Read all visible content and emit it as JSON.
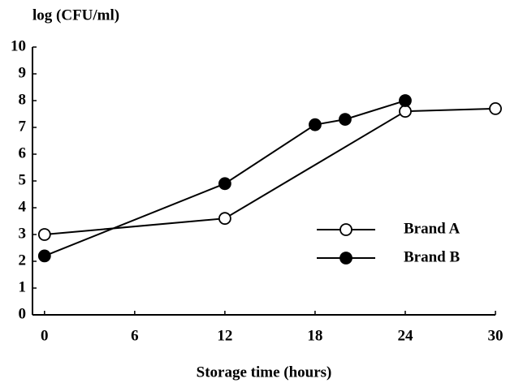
{
  "chart_data": {
    "type": "line",
    "y_label": "log (CFU/ml)",
    "x_label": "Storage time (hours)",
    "xlim": [
      -0.8,
      30
    ],
    "xticks": [
      0,
      6,
      12,
      18,
      24,
      30
    ],
    "ylim": [
      0,
      10
    ],
    "yticks": [
      0,
      1,
      2,
      3,
      4,
      5,
      6,
      7,
      8,
      9,
      10
    ],
    "grid": false,
    "legend": "lower right",
    "series": [
      {
        "name": "Brand A",
        "color": "#000000",
        "marker": "open",
        "x": [
          0,
          12,
          24,
          30
        ],
        "values": [
          3.0,
          3.6,
          7.6,
          7.7
        ]
      },
      {
        "name": "Brand B",
        "color": "#000000",
        "marker": "filled",
        "x": [
          0,
          12,
          18,
          20,
          24
        ],
        "values": [
          2.2,
          4.9,
          7.1,
          7.3,
          8.0
        ]
      }
    ]
  }
}
